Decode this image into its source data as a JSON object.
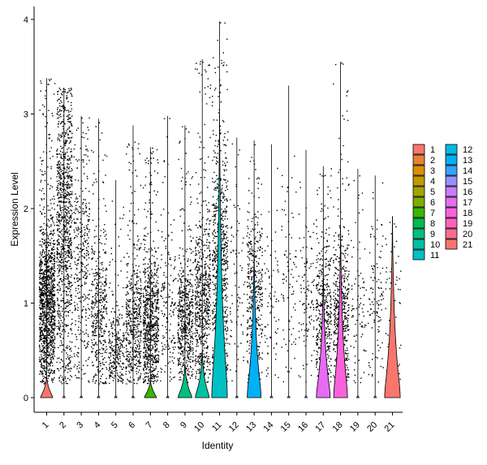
{
  "chart_data": {
    "type": "violin",
    "xlabel": "Identity",
    "ylabel": "Expression Level",
    "ylim": [
      -0.15,
      4.2
    ],
    "y_ticks": [
      0,
      1,
      2,
      3,
      4
    ],
    "categories": [
      "1",
      "2",
      "3",
      "4",
      "5",
      "6",
      "7",
      "8",
      "9",
      "10",
      "11",
      "12",
      "13",
      "14",
      "15",
      "16",
      "17",
      "18",
      "19",
      "20",
      "21"
    ],
    "series": [
      {
        "name": "1",
        "color": "#F8766D",
        "max": 3.38,
        "density": 0.9,
        "spread": 1.0,
        "violin_width": 0.35,
        "violin_height": 0.22
      },
      {
        "name": "2",
        "color": "#EA8331",
        "max": 3.28,
        "density": 0.7,
        "spread": 1.9,
        "violin_width": 0.05,
        "violin_height": 0.05
      },
      {
        "name": "3",
        "color": "#D89000",
        "max": 2.98,
        "density": 0.25,
        "spread": 1.5,
        "violin_width": 0.02,
        "violin_height": 0.02
      },
      {
        "name": "4",
        "color": "#C09B00",
        "max": 2.95,
        "density": 0.3,
        "spread": 0.9,
        "violin_width": 0.02,
        "violin_height": 0.02
      },
      {
        "name": "5",
        "color": "#A3A500",
        "max": 2.3,
        "density": 0.2,
        "spread": 0.5,
        "violin_width": 0.02,
        "violin_height": 0.02
      },
      {
        "name": "6",
        "color": "#7CAE00",
        "max": 2.88,
        "density": 0.35,
        "spread": 0.8,
        "violin_width": 0.02,
        "violin_height": 0.02
      },
      {
        "name": "7",
        "color": "#39B600",
        "max": 2.65,
        "density": 0.55,
        "spread": 0.8,
        "violin_width": 0.35,
        "violin_height": 0.18
      },
      {
        "name": "8",
        "color": "#00BB4E",
        "max": 2.98,
        "density": 0.12,
        "spread": 0.9,
        "violin_width": 0.02,
        "violin_height": 0.02
      },
      {
        "name": "9",
        "color": "#00BF7D",
        "max": 2.88,
        "density": 0.4,
        "spread": 0.8,
        "violin_width": 0.4,
        "violin_height": 0.35
      },
      {
        "name": "10",
        "color": "#00C1A3",
        "max": 3.58,
        "density": 0.45,
        "spread": 1.0,
        "violin_width": 0.4,
        "violin_height": 0.5
      },
      {
        "name": "11",
        "color": "#00BFC4",
        "max": 3.98,
        "density": 0.5,
        "spread": 1.5,
        "violin_width": 0.45,
        "violin_height": 3.0
      },
      {
        "name": "12",
        "color": "#00BAE0",
        "max": 2.75,
        "density": 0.06,
        "spread": 1.2,
        "violin_width": 0.02,
        "violin_height": 0.02
      },
      {
        "name": "13",
        "color": "#00B0F6",
        "max": 2.72,
        "density": 0.3,
        "spread": 1.1,
        "violin_width": 0.4,
        "violin_height": 1.6
      },
      {
        "name": "14",
        "color": "#35A2FF",
        "max": 2.68,
        "density": 0.05,
        "spread": 1.0,
        "violin_width": 0.02,
        "violin_height": 0.02
      },
      {
        "name": "15",
        "color": "#9590FF",
        "max": 3.3,
        "density": 0.06,
        "spread": 1.2,
        "violin_width": 0.02,
        "violin_height": 0.02
      },
      {
        "name": "16",
        "color": "#C77CFF",
        "max": 2.62,
        "density": 0.08,
        "spread": 1.0,
        "violin_width": 0.02,
        "violin_height": 0.02
      },
      {
        "name": "17",
        "color": "#E76BF3",
        "max": 2.45,
        "density": 0.3,
        "spread": 0.9,
        "violin_width": 0.4,
        "violin_height": 1.35
      },
      {
        "name": "18",
        "color": "#FA62DB",
        "max": 3.55,
        "density": 0.35,
        "spread": 0.9,
        "violin_width": 0.4,
        "violin_height": 1.8
      },
      {
        "name": "19",
        "color": "#FF62BC",
        "max": 2.42,
        "density": 0.06,
        "spread": 1.0,
        "violin_width": 0.02,
        "violin_height": 0.02
      },
      {
        "name": "20",
        "color": "#FF6C91",
        "max": 2.35,
        "density": 0.08,
        "spread": 1.0,
        "violin_width": 0.02,
        "violin_height": 0.02
      },
      {
        "name": "21",
        "color": "#F8766D",
        "max": 1.92,
        "density": 0.05,
        "spread": 1.0,
        "violin_width": 0.45,
        "violin_height": 1.92
      }
    ],
    "legend": {
      "position": "right",
      "columns": 2
    },
    "grid": false
  }
}
